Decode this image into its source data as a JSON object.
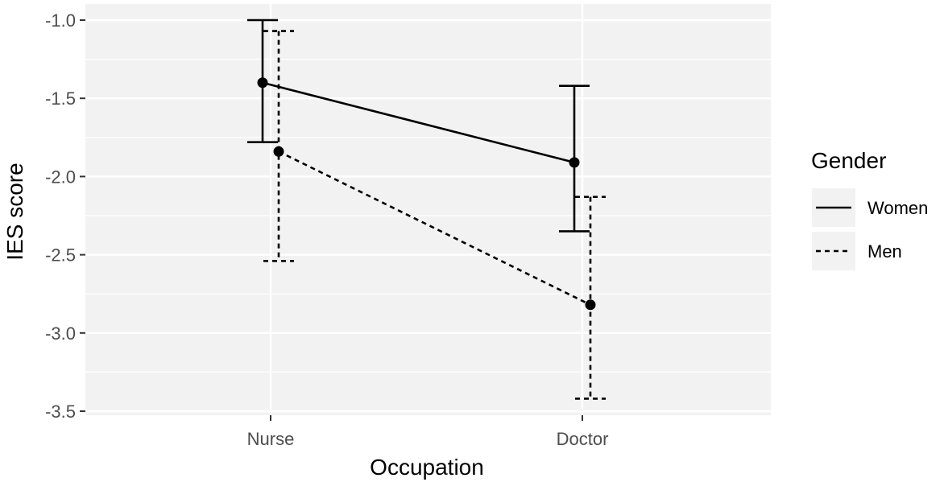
{
  "colors": {
    "panel_background": "#f2f2f2",
    "grid": "#ffffff",
    "tick_text": "#4d4d4d",
    "ink": "#000000"
  },
  "chart_data": {
    "type": "line",
    "categories": [
      "Nurse",
      "Doctor"
    ],
    "xlabel": "Occupation",
    "ylabel": "IES score",
    "ylim": [
      -3.5,
      -1.0
    ],
    "y_ticks": [
      -1.0,
      -1.5,
      -2.0,
      -2.5,
      -3.0,
      -3.5
    ],
    "y_tick_labels": [
      "-1.0",
      "-1.5",
      "-2.0",
      "-2.5",
      "-3.0",
      "-3.5"
    ],
    "grid": true,
    "legend": {
      "title": "Gender",
      "placement": "right"
    },
    "series": [
      {
        "name": "Women",
        "linestyle": "solid",
        "values": [
          -1.4,
          -1.91
        ],
        "lower": [
          -1.78,
          -2.35
        ],
        "upper": [
          -1.0,
          -1.42
        ]
      },
      {
        "name": "Men",
        "linestyle": "dashed",
        "values": [
          -1.84,
          -2.82
        ],
        "lower": [
          -2.54,
          -3.42
        ],
        "upper": [
          -1.07,
          -2.13
        ]
      }
    ]
  }
}
